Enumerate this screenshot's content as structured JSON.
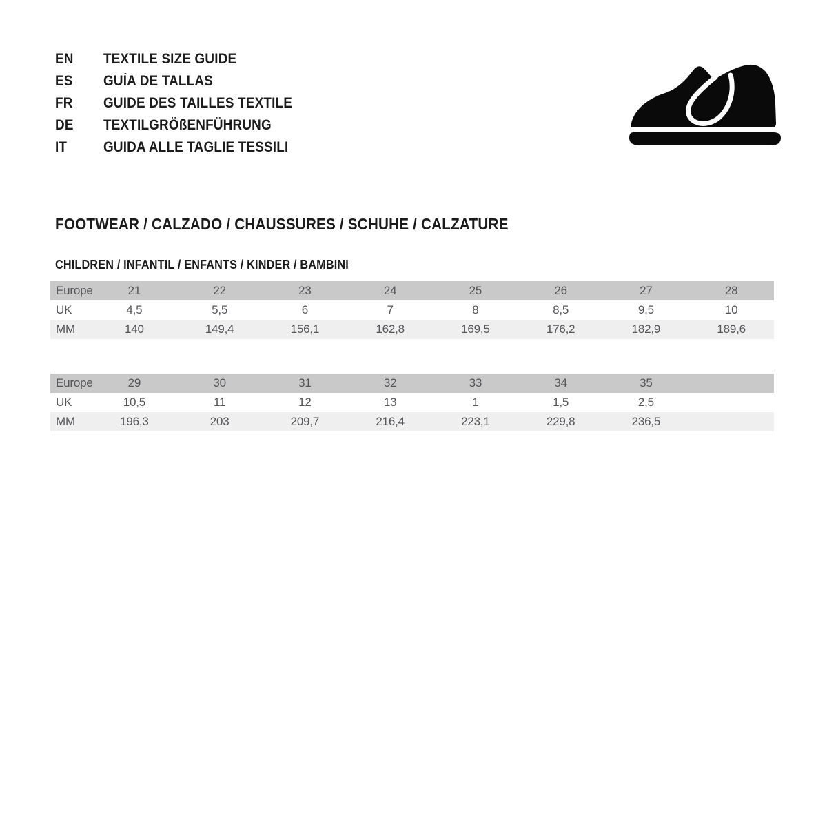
{
  "header": {
    "languages": [
      {
        "code": "EN",
        "label": "TEXTILE SIZE GUIDE"
      },
      {
        "code": "ES",
        "label": "GUÍA DE TALLAS"
      },
      {
        "code": "FR",
        "label": "GUIDE DES TAILLES TEXTILE"
      },
      {
        "code": "DE",
        "label": "TEXTILGRÖßENFÜHRUNG"
      },
      {
        "code": "IT",
        "label": "GUIDA ALLE TAGLIE TESSILI"
      }
    ],
    "logo_icon": "children-shoe-icon"
  },
  "section": {
    "title": "FOOTWEAR / CALZADO / CHAUSSURES / SCHUHE / CALZATURE",
    "subtitle": "CHILDREN / INFANTIL / ENFANTS / KINDER / BAMBINI"
  },
  "tables": [
    {
      "rows": [
        {
          "label": "Europe",
          "values": [
            "21",
            "22",
            "23",
            "24",
            "25",
            "26",
            "27",
            "28"
          ]
        },
        {
          "label": "UK",
          "values": [
            "4,5",
            "5,5",
            "6",
            "7",
            "8",
            "8,5",
            "9,5",
            "10"
          ]
        },
        {
          "label": "MM",
          "values": [
            "140",
            "149,4",
            "156,1",
            "162,8",
            "169,5",
            "176,2",
            "182,9",
            "189,6"
          ]
        }
      ]
    },
    {
      "rows": [
        {
          "label": "Europe",
          "values": [
            "29",
            "30",
            "31",
            "32",
            "33",
            "34",
            "35",
            ""
          ]
        },
        {
          "label": "UK",
          "values": [
            "10,5",
            "11",
            "12",
            "13",
            "1",
            "1,5",
            "2,5",
            ""
          ]
        },
        {
          "label": "MM",
          "values": [
            "196,3",
            "203",
            "209,7",
            "216,4",
            "223,1",
            "229,8",
            "236,5",
            ""
          ]
        }
      ]
    }
  ],
  "colors": {
    "background": "#ffffff",
    "heading_text": "#1b1b1b",
    "table_text": "#545559",
    "table_header_row_bg": "#c9c9c9",
    "table_mm_row_bg": "#efefef",
    "logo_fill": "#0a0a0a"
  }
}
